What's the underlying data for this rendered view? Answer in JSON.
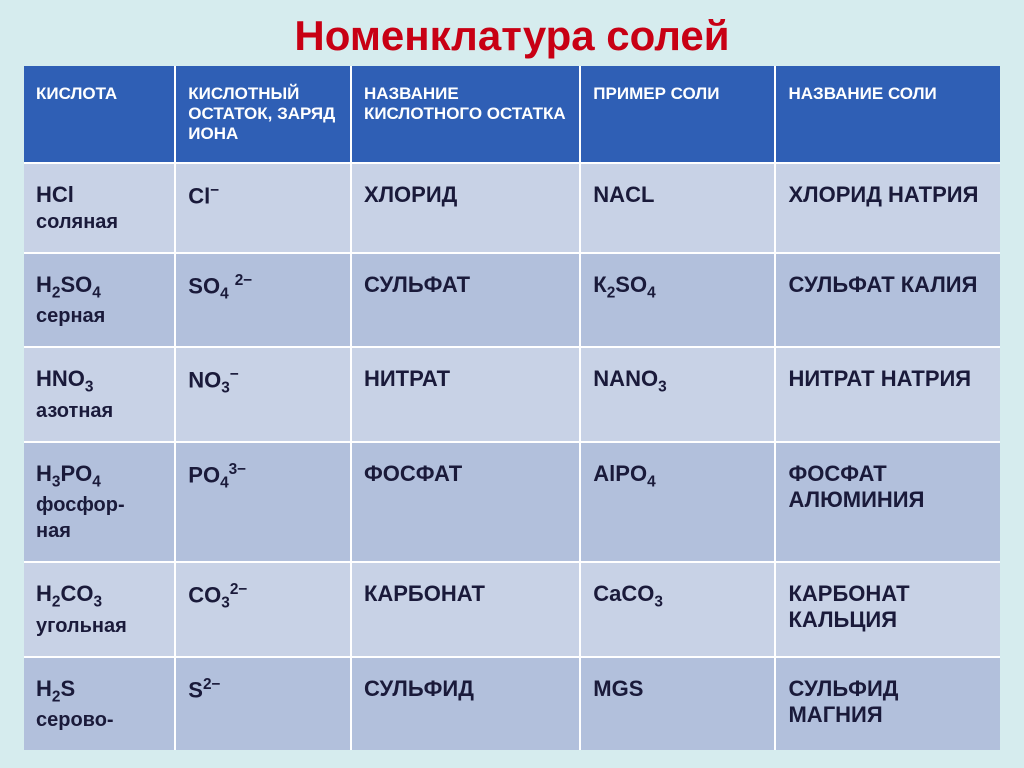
{
  "title": "Номенклатура солей",
  "title_color": "#c80014",
  "header_bg": "#2f5fb5",
  "row_bg_a": "#c8d2e6",
  "row_bg_b": "#b2c0dc",
  "columns": [
    "Кислота",
    "Кислотный остаток, заряд иона",
    "Название кислотного остатка",
    "Пример соли",
    "Название соли"
  ],
  "rows": [
    {
      "acid_html": "HCl<br><span class='acid-secondary'>соляная</span>",
      "residue_html": "Cl<span class='sup'>−</span>",
      "residue_name": "ХЛОРИД",
      "salt_html": "NACL",
      "salt_name": "ХЛОРИД НАТРИЯ"
    },
    {
      "acid_html": "H<span class='sub'>2</span>SO<span class='sub'>4</span><br><span class='acid-secondary'>серная</span>",
      "residue_html": "SO<span class='sub'>4</span> <span class='sup'>2−</span>",
      "residue_name": "СУЛЬФАТ",
      "salt_html": "К<span class='sub'>2</span>SO<span class='sub'>4</span>",
      "salt_name": "СУЛЬФАТ КАЛИЯ"
    },
    {
      "acid_html": "HNO<span class='sub'>3</span><br><span class='acid-secondary'>азотная</span>",
      "residue_html": "NO<span class='sub'>3</span><span class='sup'>−</span>",
      "residue_name": "НИТРАТ",
      "salt_html": "NANO<span class='sub'>3</span>",
      "salt_name": "НИТРАТ НАТРИЯ"
    },
    {
      "acid_html": "H<span class='sub'>3</span>PO<span class='sub'>4</span><br><span class='acid-secondary'>фосфор-<br>ная</span>",
      "residue_html": "PO<span class='sub'>4</span><span class='sup'>3−</span>",
      "residue_name": "ФОСФАТ",
      "salt_html": "AlPO<span class='sub'>4</span>",
      "salt_name": "ФОСФАТ АЛЮМИНИЯ"
    },
    {
      "acid_html": "H<span class='sub'>2</span>CO<span class='sub'>3</span><br><span class='acid-secondary'>угольная</span>",
      "residue_html": "CO<span class='sub'>3</span><span class='sup'>2−</span>",
      "residue_name": "КАРБОНАТ",
      "salt_html": "CaCO<span class='sub'>3</span>",
      "salt_name": "КАРБОНАТ КАЛЬЦИЯ"
    },
    {
      "acid_html": "H<span class='sub'>2</span>S<br><span class='acid-secondary'>серово-</span>",
      "residue_html": "S<span class='sup'>2−</span>",
      "residue_name": "СУЛЬФИД",
      "salt_html": "MGS",
      "salt_name": "СУЛЬФИД МАГНИЯ"
    }
  ]
}
